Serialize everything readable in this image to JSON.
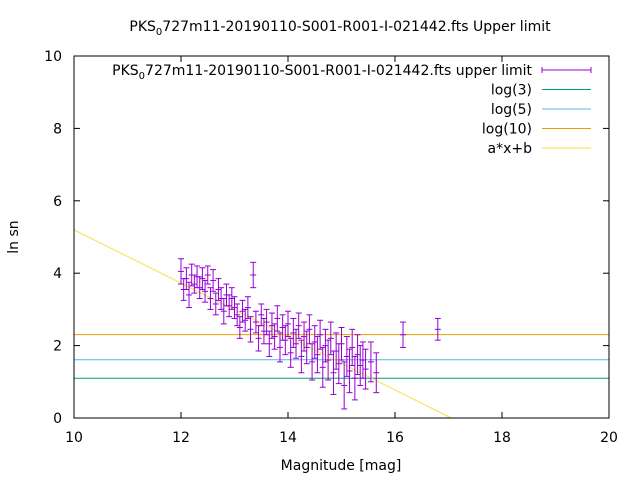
{
  "chart_data": {
    "type": "scatter",
    "title_main": "PKS",
    "title_sub": "0",
    "title_rest": "727m11-20190110-S001-R001-I-021442.fts Upper limit",
    "xlabel": "Magnitude [mag]",
    "ylabel": "ln sn",
    "xlim": [
      10,
      20
    ],
    "ylim": [
      0,
      10
    ],
    "xticks": [
      10,
      12,
      14,
      16,
      18,
      20
    ],
    "yticks": [
      0,
      2,
      4,
      6,
      8,
      10
    ],
    "grid": false,
    "legend_position": "top-right",
    "series": [
      {
        "name": "PKS0727m11-20190110-S001-R001-I-021442.fts upper limit",
        "legend_main": "PKS",
        "legend_sub": "0",
        "legend_rest": "727m11-20190110-S001-R001-I-021442.fts upper limit",
        "kind": "errorbars",
        "color": "#9400d3",
        "points": [
          [
            12.0,
            4.05,
            0.35
          ],
          [
            12.05,
            3.55,
            0.3
          ],
          [
            12.1,
            3.85,
            0.3
          ],
          [
            12.15,
            3.4,
            0.35
          ],
          [
            12.2,
            3.95,
            0.3
          ],
          [
            12.25,
            3.7,
            0.25
          ],
          [
            12.3,
            3.9,
            0.3
          ],
          [
            12.35,
            3.6,
            0.3
          ],
          [
            12.4,
            3.85,
            0.3
          ],
          [
            12.45,
            3.5,
            0.3
          ],
          [
            12.5,
            3.95,
            0.25
          ],
          [
            12.55,
            3.3,
            0.3
          ],
          [
            12.6,
            3.8,
            0.3
          ],
          [
            12.65,
            3.15,
            0.3
          ],
          [
            12.7,
            3.55,
            0.3
          ],
          [
            12.75,
            3.3,
            0.3
          ],
          [
            12.8,
            2.95,
            0.35
          ],
          [
            12.85,
            3.4,
            0.3
          ],
          [
            12.9,
            3.1,
            0.3
          ],
          [
            12.95,
            3.3,
            0.3
          ],
          [
            13.0,
            3.05,
            0.3
          ],
          [
            13.05,
            2.85,
            0.3
          ],
          [
            13.1,
            2.5,
            0.3
          ],
          [
            13.15,
            2.95,
            0.3
          ],
          [
            13.2,
            2.7,
            0.3
          ],
          [
            13.25,
            3.05,
            0.3
          ],
          [
            13.3,
            2.45,
            0.35
          ],
          [
            13.35,
            3.95,
            0.35
          ],
          [
            13.4,
            2.65,
            0.3
          ],
          [
            13.45,
            2.2,
            0.35
          ],
          [
            13.5,
            2.85,
            0.3
          ],
          [
            13.55,
            2.4,
            0.35
          ],
          [
            13.6,
            2.65,
            0.35
          ],
          [
            13.65,
            2.05,
            0.35
          ],
          [
            13.7,
            2.55,
            0.35
          ],
          [
            13.75,
            2.25,
            0.35
          ],
          [
            13.8,
            2.75,
            0.35
          ],
          [
            13.85,
            1.95,
            0.4
          ],
          [
            13.9,
            2.5,
            0.35
          ],
          [
            13.95,
            2.15,
            0.4
          ],
          [
            14.0,
            2.6,
            0.35
          ],
          [
            14.05,
            1.8,
            0.4
          ],
          [
            14.1,
            2.35,
            0.4
          ],
          [
            14.15,
            2.05,
            0.4
          ],
          [
            14.2,
            2.55,
            0.35
          ],
          [
            14.25,
            1.7,
            0.45
          ],
          [
            14.3,
            2.25,
            0.4
          ],
          [
            14.35,
            1.95,
            0.45
          ],
          [
            14.4,
            2.45,
            0.4
          ],
          [
            14.45,
            1.55,
            0.5
          ],
          [
            14.5,
            2.1,
            0.45
          ],
          [
            14.55,
            1.75,
            0.5
          ],
          [
            14.6,
            2.3,
            0.4
          ],
          [
            14.65,
            1.4,
            0.55
          ],
          [
            14.7,
            2.0,
            0.45
          ],
          [
            14.75,
            1.6,
            0.55
          ],
          [
            14.8,
            2.2,
            0.45
          ],
          [
            14.85,
            1.25,
            0.6
          ],
          [
            14.9,
            1.85,
            0.5
          ],
          [
            14.95,
            1.5,
            0.55
          ],
          [
            15.0,
            2.05,
            0.45
          ],
          [
            15.05,
            0.9,
            0.65
          ],
          [
            15.1,
            1.7,
            0.55
          ],
          [
            15.15,
            1.3,
            0.6
          ],
          [
            15.2,
            1.95,
            0.5
          ],
          [
            15.25,
            1.1,
            0.6
          ],
          [
            15.3,
            1.75,
            0.55
          ],
          [
            15.35,
            1.45,
            0.55
          ],
          [
            15.4,
            1.6,
            0.5
          ],
          [
            15.45,
            1.35,
            0.55
          ],
          [
            15.55,
            1.55,
            0.55
          ],
          [
            15.65,
            1.25,
            0.55
          ],
          [
            16.15,
            2.3,
            0.35
          ],
          [
            16.8,
            2.45,
            0.3
          ]
        ]
      },
      {
        "name": "log(3)",
        "kind": "hline",
        "value": 1.0986,
        "color": "#009e73"
      },
      {
        "name": "log(5)",
        "kind": "hline",
        "value": 1.6094,
        "color": "#56b4e9"
      },
      {
        "name": "log(10)",
        "kind": "hline",
        "value": 2.3026,
        "color": "#e69f00"
      },
      {
        "name": "a*x+b",
        "kind": "line",
        "points": [
          [
            10,
            5.2
          ],
          [
            17.05,
            0
          ]
        ],
        "color": "#f0e442"
      }
    ]
  }
}
